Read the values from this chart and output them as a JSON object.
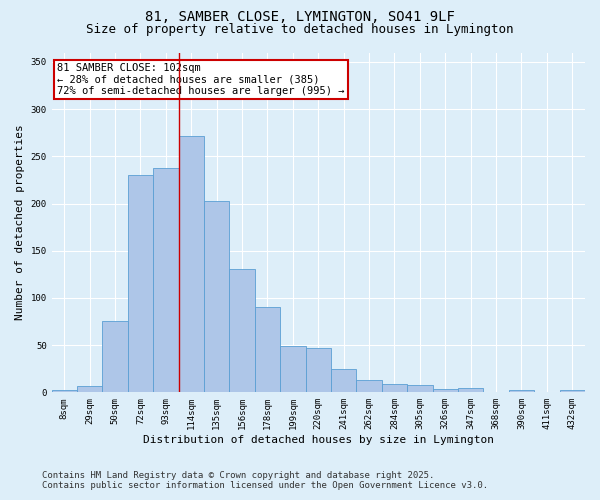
{
  "title_line1": "81, SAMBER CLOSE, LYMINGTON, SO41 9LF",
  "title_line2": "Size of property relative to detached houses in Lymington",
  "xlabel": "Distribution of detached houses by size in Lymington",
  "ylabel": "Number of detached properties",
  "categories": [
    "8sqm",
    "29sqm",
    "50sqm",
    "72sqm",
    "93sqm",
    "114sqm",
    "135sqm",
    "156sqm",
    "178sqm",
    "199sqm",
    "220sqm",
    "241sqm",
    "262sqm",
    "284sqm",
    "305sqm",
    "326sqm",
    "347sqm",
    "368sqm",
    "390sqm",
    "411sqm",
    "432sqm"
  ],
  "values": [
    2,
    7,
    76,
    230,
    238,
    272,
    203,
    131,
    90,
    49,
    47,
    25,
    13,
    9,
    8,
    4,
    5,
    0,
    3,
    0,
    2
  ],
  "bar_color": "#aec6e8",
  "bar_edge_color": "#5a9fd4",
  "annotation_text_line1": "81 SAMBER CLOSE: 102sqm",
  "annotation_text_line2": "← 28% of detached houses are smaller (385)",
  "annotation_text_line3": "72% of semi-detached houses are larger (995) →",
  "annotation_box_color": "#ffffff",
  "annotation_box_edge_color": "#cc0000",
  "vline_x_index": 4.5,
  "vline_color": "#cc0000",
  "ylim": [
    0,
    360
  ],
  "yticks": [
    0,
    50,
    100,
    150,
    200,
    250,
    300,
    350
  ],
  "background_color": "#ddeef9",
  "footer_line1": "Contains HM Land Registry data © Crown copyright and database right 2025.",
  "footer_line2": "Contains public sector information licensed under the Open Government Licence v3.0.",
  "grid_color": "#ffffff",
  "title_fontsize": 10,
  "subtitle_fontsize": 9,
  "axis_label_fontsize": 8,
  "tick_fontsize": 6.5,
  "footer_fontsize": 6.5,
  "annotation_fontsize": 7.5
}
